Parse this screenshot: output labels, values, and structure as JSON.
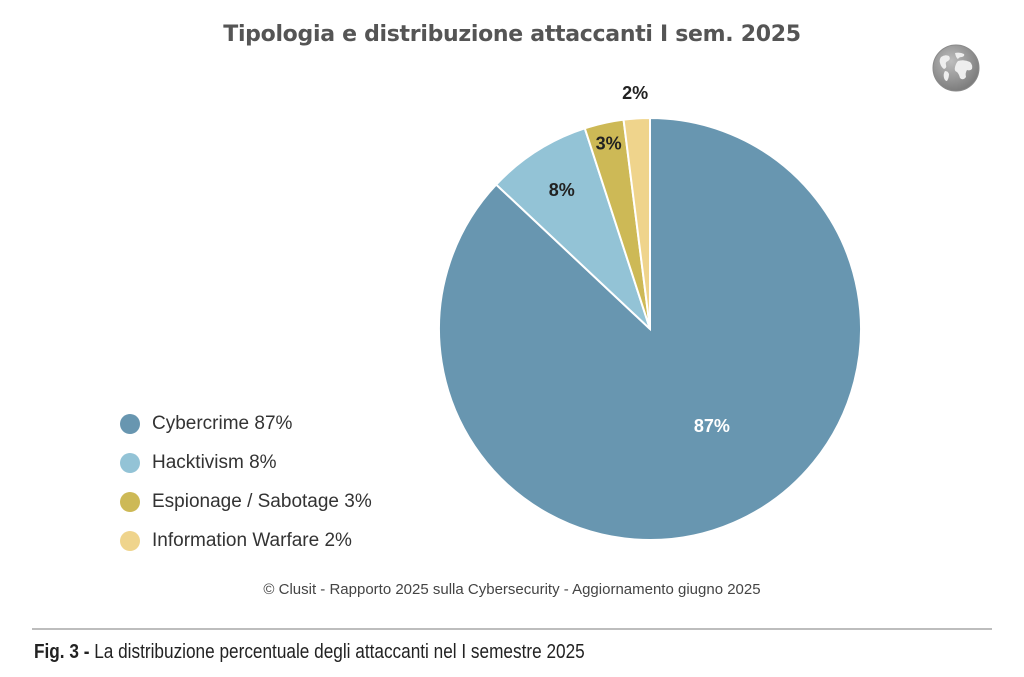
{
  "header": {
    "title": "Tipologia e distribuzione attaccanti I sem. 2025",
    "icon": "globe-icon"
  },
  "legend": [
    {
      "label": "Cybercrime 87%",
      "color": "#6896b0"
    },
    {
      "label": "Hacktivism 8%",
      "color": "#93c3d6"
    },
    {
      "label": "Espionage / Sabotage 3%",
      "color": "#cdb956"
    },
    {
      "label": "Information Warfare 2%",
      "color": "#efd48c"
    }
  ],
  "footer": {
    "credit": "© Clusit - Rapporto 2025 sulla Cybersecurity - Aggiornamento giugno 2025",
    "caption_prefix": "Fig. 3 -",
    "caption_text": " La distribuzione percentuale degli attaccanti nel I semestre 2025"
  },
  "chart_data": {
    "type": "pie",
    "title": "Tipologia e distribuzione attaccanti I sem. 2025",
    "categories": [
      "Cybercrime",
      "Hacktivism",
      "Espionage / Sabotage",
      "Information Warfare"
    ],
    "values": [
      87,
      8,
      3,
      2
    ],
    "unit": "%",
    "data_labels": [
      "87%",
      "8%",
      "3%",
      "2%"
    ],
    "colors": [
      "#6896b0",
      "#93c3d6",
      "#cdb956",
      "#efd48c"
    ],
    "start_angle": "12 o'clock",
    "direction": "clockwise",
    "legend_position": "left"
  }
}
